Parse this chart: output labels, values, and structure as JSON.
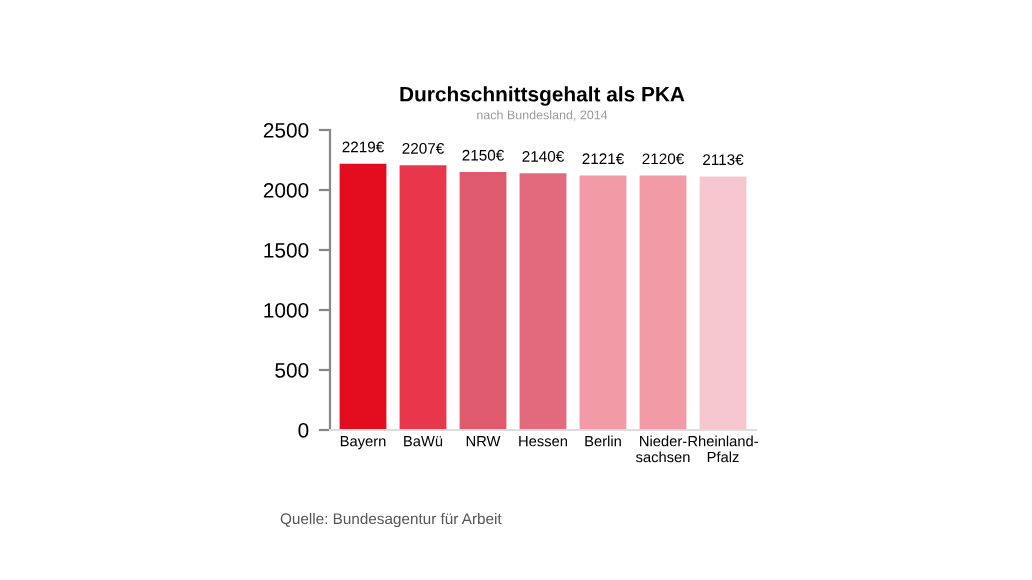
{
  "chart_data": {
    "type": "bar",
    "title": "Durchschnittsgehalt als PKA",
    "subtitle": "nach Bundesland, 2014",
    "categories": [
      "Bayern",
      "BaWü",
      "NRW",
      "Hessen",
      "Berlin",
      "Nieder-\nsachsen",
      "Rheinland-\nPfalz"
    ],
    "values": [
      2219,
      2207,
      2150,
      2140,
      2121,
      2120,
      2113
    ],
    "value_labels": [
      "2219€",
      "2207€",
      "2150€",
      "2140€",
      "2121€",
      "2120€",
      "2113€"
    ],
    "colors": [
      "#e30d1f",
      "#e8364a",
      "#e05a6e",
      "#e26a7c",
      "#f29aa5",
      "#f29aa5",
      "#f7c7cf"
    ],
    "ylim": [
      0,
      2500
    ],
    "yticks": [
      0,
      500,
      1000,
      1500,
      2000,
      2500
    ],
    "grid": false,
    "annotations": [
      "Quelle: Bundesagentur für Arbeit"
    ]
  }
}
